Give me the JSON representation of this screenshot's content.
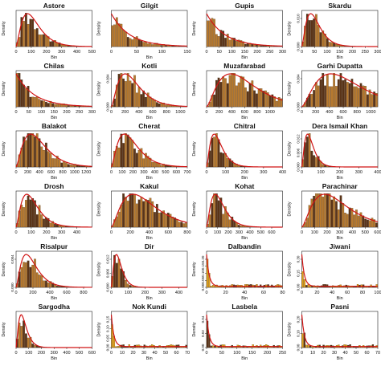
{
  "chart_data": [
    {
      "type": "bar",
      "title": "Astore",
      "xlabel": "Bin",
      "ylabel": "Density",
      "xlim": [
        0,
        500
      ],
      "ylim": [
        0,
        0.005
      ],
      "xticks": [
        0,
        100,
        200,
        300,
        400,
        500
      ],
      "yticks": [],
      "peak": 75,
      "shape": "gamma",
      "curve_color": "#d11414",
      "bar_color": "#b87a2e"
    },
    {
      "type": "bar",
      "title": "Gilgit",
      "xlabel": "Bin",
      "ylabel": "Density",
      "xlim": [
        0,
        150
      ],
      "ylim": [
        0,
        0.02
      ],
      "xticks": [
        0,
        50,
        100,
        150
      ],
      "yticks": [],
      "peak": 8,
      "shape": "decay",
      "curve_color": "#d11414",
      "bar_color": "#b87a2e"
    },
    {
      "type": "bar",
      "title": "Gupis",
      "xlabel": "Bin",
      "ylabel": "Density",
      "xlim": [
        0,
        300
      ],
      "ylim": [
        0,
        0.02
      ],
      "xticks": [
        0,
        50,
        100,
        150,
        200,
        250,
        300
      ],
      "yticks": [],
      "peak": 5,
      "shape": "decay",
      "curve_color": "#d11414",
      "bar_color": "#b87a2e"
    },
    {
      "type": "bar",
      "title": "Skardu",
      "xlabel": "Bin",
      "ylabel": "Density",
      "xlim": [
        0,
        300
      ],
      "ylim": [
        0,
        0.015
      ],
      "xticks": [
        0,
        50,
        100,
        150,
        200,
        250,
        300
      ],
      "yticks": [
        "0.000",
        "0.010"
      ],
      "peak": 35,
      "shape": "gamma",
      "curve_color": "#d11414",
      "bar_color": "#b87a2e"
    },
    {
      "type": "bar",
      "title": "Chilas",
      "xlabel": "Bin",
      "ylabel": "Density",
      "xlim": [
        0,
        300
      ],
      "ylim": [
        0,
        0.02
      ],
      "xticks": [
        0,
        50,
        100,
        150,
        200,
        250,
        300
      ],
      "yticks": [],
      "peak": 5,
      "shape": "decay",
      "curve_color": "#d11414",
      "bar_color": "#b87a2e"
    },
    {
      "type": "bar",
      "title": "Kotli",
      "xlabel": "Bin",
      "ylabel": "Density",
      "xlim": [
        0,
        1100
      ],
      "ylim": [
        0,
        0.004
      ],
      "xticks": [
        0,
        200,
        400,
        600,
        800,
        1000
      ],
      "yticks": [
        "0.000",
        "0.004"
      ],
      "peak": 200,
      "shape": "gamma",
      "curve_color": "#d11414",
      "bar_color": "#b87a2e"
    },
    {
      "type": "bar",
      "title": "Muzafarabad",
      "xlabel": "Bin",
      "ylabel": "Density",
      "xlim": [
        0,
        1200
      ],
      "ylim": [
        0,
        0.002
      ],
      "xticks": [
        0,
        200,
        400,
        600,
        800,
        1000
      ],
      "yticks": [],
      "peak": 380,
      "shape": "gamma",
      "curve_color": "#d11414",
      "bar_color": "#b87a2e"
    },
    {
      "type": "bar",
      "title": "Garhi Dupatta",
      "xlabel": "Bin",
      "ylabel": "Density",
      "xlim": [
        0,
        1100
      ],
      "ylim": [
        0,
        0.004
      ],
      "xticks": [
        0,
        200,
        400,
        600,
        800,
        1000
      ],
      "yticks": [
        "0.000",
        "0.004"
      ],
      "peak": 420,
      "shape": "gamma",
      "curve_color": "#d11414",
      "bar_color": "#b87a2e"
    },
    {
      "type": "bar",
      "title": "Balakot",
      "xlabel": "Bin",
      "ylabel": "Density",
      "xlim": [
        0,
        1300
      ],
      "ylim": [
        0,
        0.002
      ],
      "xticks": [
        0,
        200,
        400,
        600,
        800,
        1000,
        1200
      ],
      "yticks": [],
      "peak": 250,
      "shape": "gamma",
      "curve_color": "#d11414",
      "bar_color": "#b87a2e"
    },
    {
      "type": "bar",
      "title": "Cherat",
      "xlabel": "Bin",
      "ylabel": "Density",
      "xlim": [
        0,
        700
      ],
      "ylim": [
        0,
        0.004
      ],
      "xticks": [
        0,
        100,
        200,
        300,
        400,
        500,
        600,
        700
      ],
      "yticks": [],
      "peak": 120,
      "shape": "gamma",
      "curve_color": "#d11414",
      "bar_color": "#b87a2e"
    },
    {
      "type": "bar",
      "title": "Chitral",
      "xlabel": "Bin",
      "ylabel": "Density",
      "xlim": [
        0,
        400
      ],
      "ylim": [
        0,
        0.008
      ],
      "xticks": [
        0,
        100,
        200,
        300,
        400
      ],
      "yticks": [],
      "peak": 40,
      "shape": "gamma",
      "curve_color": "#d11414",
      "bar_color": "#b87a2e"
    },
    {
      "type": "bar",
      "title": "Dera Ismail Khan",
      "xlabel": "Bin",
      "ylabel": "Density",
      "xlim": [
        0,
        400
      ],
      "ylim": [
        0,
        0.012
      ],
      "xticks": [
        0,
        100,
        200,
        300,
        400
      ],
      "yticks": [
        "0.000",
        "0.006",
        "0.012"
      ],
      "peak": 30,
      "shape": "gamma",
      "curve_color": "#d11414",
      "bar_color": "#b87a2e"
    },
    {
      "type": "bar",
      "title": "Drosh",
      "xlabel": "Bin",
      "ylabel": "Density",
      "xlim": [
        0,
        500
      ],
      "ylim": [
        0,
        0.005
      ],
      "xticks": [
        0,
        100,
        200,
        300,
        400
      ],
      "yticks": [],
      "peak": 70,
      "shape": "gamma",
      "curve_color": "#d11414",
      "bar_color": "#b87a2e"
    },
    {
      "type": "bar",
      "title": "Kakul",
      "xlabel": "Bin",
      "ylabel": "Density",
      "xlim": [
        0,
        800
      ],
      "ylim": [
        0,
        0.003
      ],
      "xticks": [
        0,
        200,
        400,
        600,
        800
      ],
      "yticks": [],
      "peak": 230,
      "shape": "gamma",
      "curve_color": "#d11414",
      "bar_color": "#b87a2e"
    },
    {
      "type": "bar",
      "title": "Kohat",
      "xlabel": "Bin",
      "ylabel": "Density",
      "xlim": [
        0,
        700
      ],
      "ylim": [
        0,
        0.004
      ],
      "xticks": [
        0,
        100,
        200,
        300,
        400,
        500,
        600
      ],
      "yticks": [],
      "peak": 80,
      "shape": "gamma",
      "curve_color": "#d11414",
      "bar_color": "#b87a2e"
    },
    {
      "type": "bar",
      "title": "Parachinar",
      "xlabel": "Bin",
      "ylabel": "Density",
      "xlim": [
        0,
        600
      ],
      "ylim": [
        0,
        0.004
      ],
      "xticks": [
        0,
        100,
        200,
        300,
        400,
        500,
        600
      ],
      "yticks": [],
      "peak": 180,
      "shape": "gamma",
      "curve_color": "#d11414",
      "bar_color": "#b87a2e"
    },
    {
      "type": "bar",
      "title": "Risalpur",
      "xlabel": "Bin",
      "ylabel": "Density",
      "xlim": [
        0,
        900
      ],
      "ylim": [
        0,
        0.004
      ],
      "xticks": [
        0,
        200,
        400,
        600,
        800
      ],
      "yticks": [
        "0.000",
        "0.004"
      ],
      "peak": 120,
      "shape": "gamma",
      "curve_color": "#d11414",
      "bar_color": "#b87a2e"
    },
    {
      "type": "bar",
      "title": "Dir",
      "xlabel": "Bin",
      "ylabel": "Density",
      "xlim": [
        0,
        450
      ],
      "ylim": [
        0,
        0.012
      ],
      "xticks": [
        0,
        100,
        200,
        300,
        400
      ],
      "yticks": [
        "0.000",
        "0.006",
        "0.012"
      ],
      "peak": 30,
      "shape": "gamma",
      "curve_color": "#d11414",
      "bar_color": "#b87a2e"
    },
    {
      "type": "bar",
      "title": "Dalbandin",
      "xlabel": "Bin",
      "ylabel": "Density",
      "xlim": [
        0,
        80
      ],
      "ylim": [
        0,
        0.25
      ],
      "xticks": [
        0,
        20,
        40,
        60,
        80
      ],
      "yticks": [
        "0.00",
        "0.05",
        "0.10",
        "0.15",
        "0.20"
      ],
      "peak": 1,
      "shape": "spike",
      "curve_color": "#d11414",
      "bar_color": "#e0a21a"
    },
    {
      "type": "bar",
      "title": "Jiwani",
      "xlabel": "Bin",
      "ylabel": "Density",
      "xlim": [
        0,
        100
      ],
      "ylim": [
        0,
        0.35
      ],
      "xticks": [
        0,
        20,
        40,
        60,
        80,
        100
      ],
      "yticks": [
        "0.00",
        "0.15",
        "0.30"
      ],
      "peak": 1,
      "shape": "spike",
      "curve_color": "#d11414",
      "bar_color": "#e0a21a"
    },
    {
      "type": "bar",
      "title": "Sargodha",
      "xlabel": "Bin",
      "ylabel": "Density",
      "xlim": [
        0,
        600
      ],
      "ylim": [
        0,
        0.004
      ],
      "xticks": [
        0,
        100,
        200,
        300,
        400,
        500,
        600
      ],
      "yticks": [],
      "peak": 40,
      "shape": "gamma",
      "curve_color": "#d11414",
      "bar_color": "#b87a2e"
    },
    {
      "type": "bar",
      "title": "Nok Kundi",
      "xlabel": "Bin",
      "ylabel": "Density",
      "xlim": [
        0,
        70
      ],
      "ylim": [
        0,
        0.25
      ],
      "xticks": [
        0,
        10,
        20,
        30,
        40,
        50,
        60,
        70
      ],
      "yticks": [
        "0.00",
        "0.05",
        "0.10",
        "0.15"
      ],
      "peak": 1,
      "shape": "spike",
      "curve_color": "#d11414",
      "bar_color": "#e0a21a"
    },
    {
      "type": "bar",
      "title": "Lasbela",
      "xlabel": "Bin",
      "ylabel": "Density",
      "xlim": [
        0,
        250
      ],
      "ylim": [
        0,
        0.06
      ],
      "xticks": [
        0,
        50,
        100,
        150,
        200,
        250
      ],
      "yticks": [
        "0.00",
        "0.02",
        "0.04"
      ],
      "peak": 2,
      "shape": "spike",
      "curve_color": "#d11414",
      "bar_color": "#e0a21a"
    },
    {
      "type": "bar",
      "title": "Pasni",
      "xlabel": "Bin",
      "ylabel": "Density",
      "xlim": [
        0,
        70
      ],
      "ylim": [
        0,
        0.3
      ],
      "xticks": [
        0,
        10,
        20,
        30,
        40,
        50,
        60,
        70
      ],
      "yticks": [
        "0.00",
        "0.10",
        "0.20"
      ],
      "peak": 1,
      "shape": "spike",
      "curve_color": "#d11414",
      "bar_color": "#e0a21a"
    }
  ]
}
